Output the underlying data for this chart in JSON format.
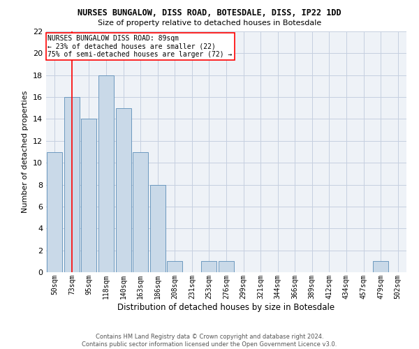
{
  "title": "NURSES BUNGALOW, DISS ROAD, BOTESDALE, DISS, IP22 1DD",
  "subtitle": "Size of property relative to detached houses in Botesdale",
  "xlabel": "Distribution of detached houses by size in Botesdale",
  "ylabel": "Number of detached properties",
  "bar_labels": [
    "50sqm",
    "73sqm",
    "95sqm",
    "118sqm",
    "140sqm",
    "163sqm",
    "186sqm",
    "208sqm",
    "231sqm",
    "253sqm",
    "276sqm",
    "299sqm",
    "321sqm",
    "344sqm",
    "366sqm",
    "389sqm",
    "412sqm",
    "434sqm",
    "457sqm",
    "479sqm",
    "502sqm"
  ],
  "bar_values": [
    11,
    16,
    14,
    18,
    15,
    11,
    8,
    1,
    0,
    1,
    1,
    0,
    0,
    0,
    0,
    0,
    0,
    0,
    0,
    1,
    0
  ],
  "bar_color": "#c9d9e8",
  "bar_edgecolor": "#5b8db8",
  "ylim": [
    0,
    22
  ],
  "yticks": [
    0,
    2,
    4,
    6,
    8,
    10,
    12,
    14,
    16,
    18,
    20,
    22
  ],
  "red_line_x": 1.0,
  "annotation_box": {
    "text_line1": "NURSES BUNGALOW DISS ROAD: 89sqm",
    "text_line2": "← 23% of detached houses are smaller (22)",
    "text_line3": "75% of semi-detached houses are larger (72) →"
  },
  "footer_line1": "Contains HM Land Registry data © Crown copyright and database right 2024.",
  "footer_line2": "Contains public sector information licensed under the Open Government Licence v3.0.",
  "bg_color": "#eef2f7",
  "grid_color": "#c5cfe0"
}
